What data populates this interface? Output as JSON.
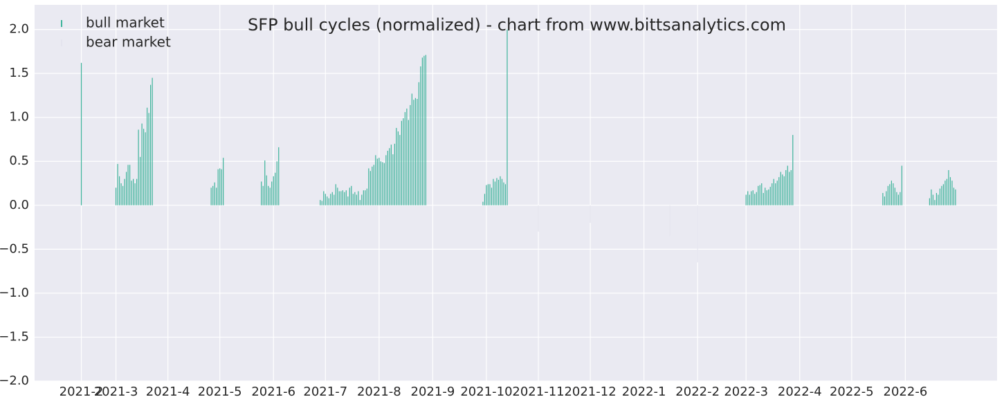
{
  "chart_data": {
    "type": "bar",
    "title": "SFP bull cycles (normalized)  - chart from www.bittsanalytics.com",
    "legend": "upper left",
    "grid": true,
    "xlim": [
      -27,
      529
    ],
    "ylim": [
      -2,
      2.28
    ],
    "yticks": [
      {
        "value": -2,
        "label": "−2.0"
      },
      {
        "value": -1.5,
        "label": "−1.5"
      },
      {
        "value": -1,
        "label": "−1.0"
      },
      {
        "value": -0.5,
        "label": "−0.5"
      },
      {
        "value": 0,
        "label": "0.0"
      },
      {
        "value": 0.5,
        "label": "0.5"
      },
      {
        "value": 1,
        "label": "1.0"
      },
      {
        "value": 1.5,
        "label": "1.5"
      },
      {
        "value": 2,
        "label": "2.0"
      }
    ],
    "xticks": [
      {
        "value": 0,
        "label": "2021-2"
      },
      {
        "value": 20,
        "label": "2021-3"
      },
      {
        "value": 50,
        "label": "2021-4"
      },
      {
        "value": 80,
        "label": "2021-5"
      },
      {
        "value": 111,
        "label": "2021-6"
      },
      {
        "value": 141,
        "label": "2021-7"
      },
      {
        "value": 172,
        "label": "2021-8"
      },
      {
        "value": 203,
        "label": "2021-9"
      },
      {
        "value": 234,
        "label": "2021-10"
      },
      {
        "value": 264,
        "label": "2021-11"
      },
      {
        "value": 294,
        "label": "2021-12"
      },
      {
        "value": 325,
        "label": "2022-1"
      },
      {
        "value": 356,
        "label": "2022-2"
      },
      {
        "value": 384,
        "label": "2022-3"
      },
      {
        "value": 415,
        "label": "2022-4"
      },
      {
        "value": 445,
        "label": "2022-5"
      },
      {
        "value": 476,
        "label": "2022-6"
      }
    ],
    "series": [
      {
        "name": "bull market",
        "color": "#3cb39a",
        "x": [
          0,
          20,
          21,
          22,
          23,
          24,
          25,
          26,
          27,
          28,
          29,
          30,
          31,
          32,
          33,
          34,
          35,
          36,
          37,
          38,
          39,
          40,
          41,
          75,
          76,
          77,
          78,
          79,
          80,
          81,
          82,
          104,
          105,
          106,
          107,
          108,
          109,
          110,
          111,
          112,
          113,
          114,
          138,
          139,
          140,
          141,
          142,
          143,
          144,
          145,
          146,
          147,
          148,
          149,
          150,
          151,
          152,
          153,
          154,
          155,
          156,
          157,
          158,
          159,
          160,
          161,
          162,
          163,
          164,
          165,
          166,
          167,
          168,
          169,
          170,
          171,
          172,
          173,
          174,
          175,
          176,
          177,
          178,
          179,
          180,
          181,
          182,
          183,
          184,
          185,
          186,
          187,
          188,
          189,
          190,
          191,
          192,
          193,
          194,
          195,
          196,
          197,
          198,
          199,
          232,
          233,
          234,
          235,
          236,
          237,
          238,
          239,
          240,
          241,
          242,
          243,
          244,
          245,
          246,
          384,
          385,
          386,
          387,
          388,
          389,
          390,
          391,
          392,
          393,
          394,
          395,
          396,
          397,
          398,
          399,
          400,
          401,
          402,
          403,
          404,
          405,
          406,
          407,
          408,
          409,
          410,
          411,
          463,
          464,
          465,
          466,
          467,
          468,
          469,
          470,
          471,
          472,
          473,
          474,
          490,
          491,
          492,
          493,
          494,
          495,
          496,
          497,
          498,
          499,
          500,
          501,
          502,
          503,
          504,
          505
        ],
        "values": [
          1.62,
          0.2,
          0.47,
          0.33,
          0.25,
          0.22,
          0.3,
          0.38,
          0.46,
          0.46,
          0.28,
          0.3,
          0.25,
          0.3,
          0.86,
          0.55,
          0.93,
          0.87,
          0.83,
          1.11,
          1.05,
          1.37,
          1.45,
          0.2,
          0.22,
          0.26,
          0.2,
          0.41,
          0.42,
          0.41,
          0.54,
          0.27,
          0.22,
          0.51,
          0.34,
          0.22,
          0.2,
          0.27,
          0.33,
          0.37,
          0.5,
          0.66,
          0.06,
          0.05,
          0.16,
          0.13,
          0.1,
          0.08,
          0.13,
          0.15,
          0.12,
          0.24,
          0.2,
          0.16,
          0.16,
          0.17,
          0.15,
          0.17,
          0.1,
          0.2,
          0.22,
          0.13,
          0.15,
          0.12,
          0.16,
          0.06,
          0.12,
          0.17,
          0.17,
          0.19,
          0.42,
          0.39,
          0.44,
          0.46,
          0.57,
          0.53,
          0.54,
          0.5,
          0.49,
          0.48,
          0.57,
          0.62,
          0.65,
          0.69,
          0.58,
          0.7,
          0.88,
          0.84,
          0.8,
          0.96,
          0.99,
          1.06,
          1.1,
          0.97,
          1.14,
          1.27,
          1.2,
          1.22,
          1.21,
          1.4,
          1.58,
          1.68,
          1.7,
          1.71,
          0.04,
          0.13,
          0.23,
          0.24,
          0.24,
          0.2,
          0.3,
          0.27,
          0.31,
          0.29,
          0.33,
          0.3,
          0.26,
          0.24,
          2.0,
          0.12,
          0.16,
          0.12,
          0.16,
          0.17,
          0.13,
          0.15,
          0.22,
          0.23,
          0.25,
          0.14,
          0.2,
          0.17,
          0.18,
          0.21,
          0.25,
          0.3,
          0.25,
          0.28,
          0.32,
          0.38,
          0.35,
          0.33,
          0.4,
          0.45,
          0.38,
          0.4,
          0.8,
          0.14,
          0.1,
          0.16,
          0.22,
          0.24,
          0.28,
          0.25,
          0.2,
          0.15,
          0.12,
          0.15,
          0.45,
          0.08,
          0.18,
          0.12,
          0.06,
          0.14,
          0.12,
          0.19,
          0.22,
          0.24,
          0.28,
          0.3,
          0.4,
          0.32,
          0.28,
          0.2,
          0.18
        ]
      },
      {
        "name": "bear market",
        "color": "#e4e4ee",
        "x": [
          264,
          294,
          340,
          356
        ],
        "values": [
          -0.3,
          -0.2,
          -0.35,
          -0.65
        ]
      }
    ]
  }
}
